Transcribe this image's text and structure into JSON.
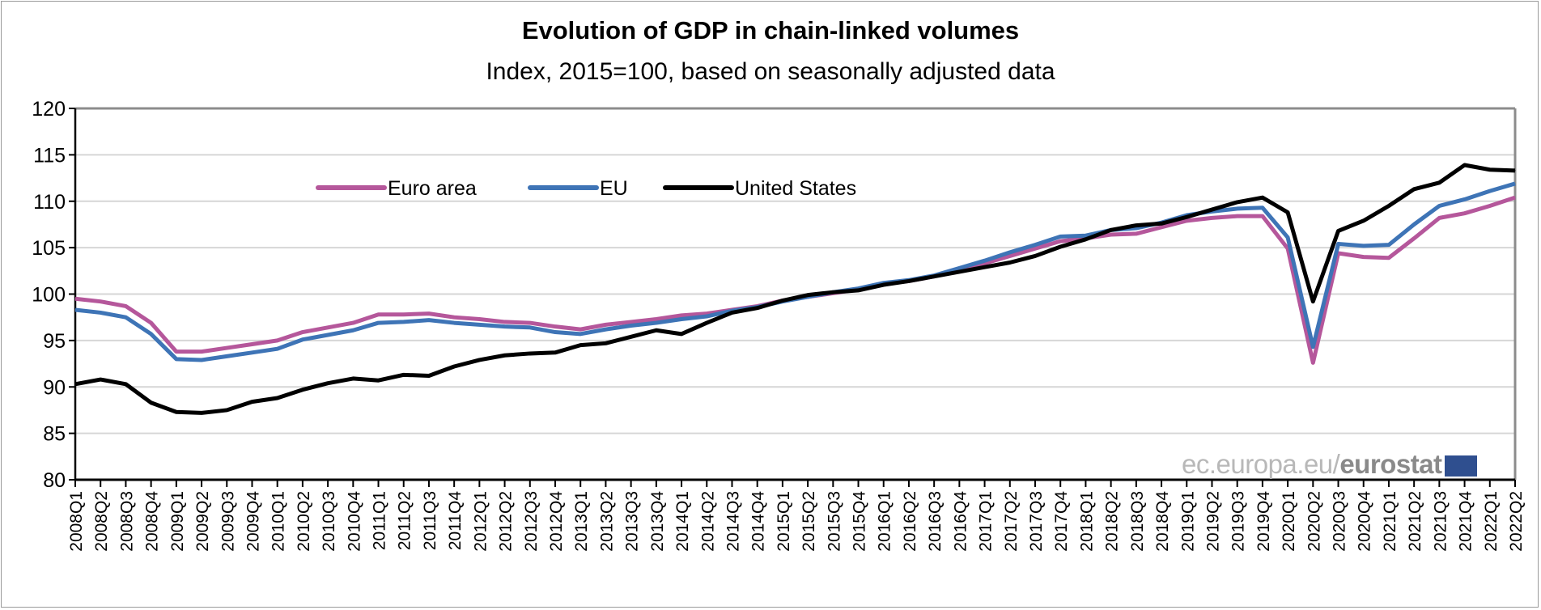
{
  "chart_data": {
    "type": "line",
    "title": "Evolution of GDP in chain-linked volumes",
    "subtitle": "Index, 2015=100, based on seasonally adjusted data",
    "xlabel": "",
    "ylabel": "",
    "ylim": [
      80,
      120
    ],
    "yticks": [
      80,
      85,
      90,
      95,
      100,
      105,
      110,
      115,
      120
    ],
    "grid": true,
    "legend_position": "top-left",
    "categories": [
      "2008Q1",
      "2008Q2",
      "2008Q3",
      "2008Q4",
      "2009Q1",
      "2009Q2",
      "2009Q3",
      "2009Q4",
      "2010Q1",
      "2010Q2",
      "2010Q3",
      "2010Q4",
      "2011Q1",
      "2011Q2",
      "2011Q3",
      "2011Q4",
      "2012Q1",
      "2012Q2",
      "2012Q3",
      "2012Q4",
      "2013Q1",
      "2013Q2",
      "2013Q3",
      "2013Q4",
      "2014Q1",
      "2014Q2",
      "2014Q3",
      "2014Q4",
      "2015Q1",
      "2015Q2",
      "2015Q3",
      "2015Q4",
      "2016Q1",
      "2016Q2",
      "2016Q3",
      "2016Q4",
      "2017Q1",
      "2017Q2",
      "2017Q3",
      "2017Q4",
      "2018Q1",
      "2018Q2",
      "2018Q3",
      "2018Q4",
      "2019Q1",
      "2019Q2",
      "2019Q3",
      "2019Q4",
      "2020Q1",
      "2020Q2",
      "2020Q3",
      "2020Q4",
      "2021Q1",
      "2021Q2",
      "2021Q3",
      "2021Q4",
      "2022Q1",
      "2022Q2"
    ],
    "series": [
      {
        "name": "Euro area",
        "color": "#b5579b",
        "values": [
          99.5,
          99.2,
          98.7,
          96.9,
          93.8,
          93.8,
          94.2,
          94.6,
          95.0,
          95.9,
          96.4,
          96.9,
          97.8,
          97.8,
          97.9,
          97.5,
          97.3,
          97.0,
          96.9,
          96.5,
          96.2,
          96.7,
          97.0,
          97.3,
          97.7,
          97.9,
          98.3,
          98.7,
          99.3,
          99.7,
          100.1,
          100.5,
          101.1,
          101.4,
          101.9,
          102.6,
          103.3,
          104.1,
          104.9,
          105.7,
          106.0,
          106.4,
          106.5,
          107.2,
          107.9,
          108.2,
          108.4,
          108.4,
          104.9,
          92.6,
          104.4,
          104.0,
          103.9,
          106.0,
          108.2,
          108.7,
          109.5,
          110.4
        ]
      },
      {
        "name": "EU",
        "color": "#3e74b6",
        "values": [
          98.3,
          98.0,
          97.5,
          95.7,
          93.0,
          92.9,
          93.3,
          93.7,
          94.1,
          95.1,
          95.6,
          96.1,
          96.9,
          97.0,
          97.2,
          96.9,
          96.7,
          96.5,
          96.4,
          95.9,
          95.7,
          96.2,
          96.6,
          96.9,
          97.3,
          97.6,
          98.2,
          98.6,
          99.2,
          99.7,
          100.2,
          100.6,
          101.2,
          101.5,
          102.0,
          102.8,
          103.6,
          104.5,
          105.3,
          106.2,
          106.3,
          106.9,
          107.1,
          107.7,
          108.5,
          108.9,
          109.2,
          109.3,
          106.1,
          94.3,
          105.4,
          105.2,
          105.3,
          107.5,
          109.5,
          110.2,
          111.1,
          111.9
        ]
      },
      {
        "name": "United States",
        "color": "#000000",
        "values": [
          90.3,
          90.8,
          90.3,
          88.3,
          87.3,
          87.2,
          87.5,
          88.4,
          88.8,
          89.7,
          90.4,
          90.9,
          90.7,
          91.3,
          91.2,
          92.2,
          92.9,
          93.4,
          93.6,
          93.7,
          94.5,
          94.7,
          95.4,
          96.1,
          95.7,
          96.9,
          98.0,
          98.5,
          99.3,
          99.9,
          100.2,
          100.4,
          101.0,
          101.4,
          101.9,
          102.4,
          102.9,
          103.4,
          104.1,
          105.1,
          105.9,
          106.9,
          107.4,
          107.6,
          108.3,
          109.1,
          109.9,
          110.4,
          108.8,
          99.2,
          106.8,
          107.9,
          109.5,
          111.3,
          112.0,
          113.9,
          113.4,
          113.3
        ]
      }
    ]
  },
  "watermark": {
    "prefix": "ec.europa.eu/",
    "brand": "eurostat"
  }
}
